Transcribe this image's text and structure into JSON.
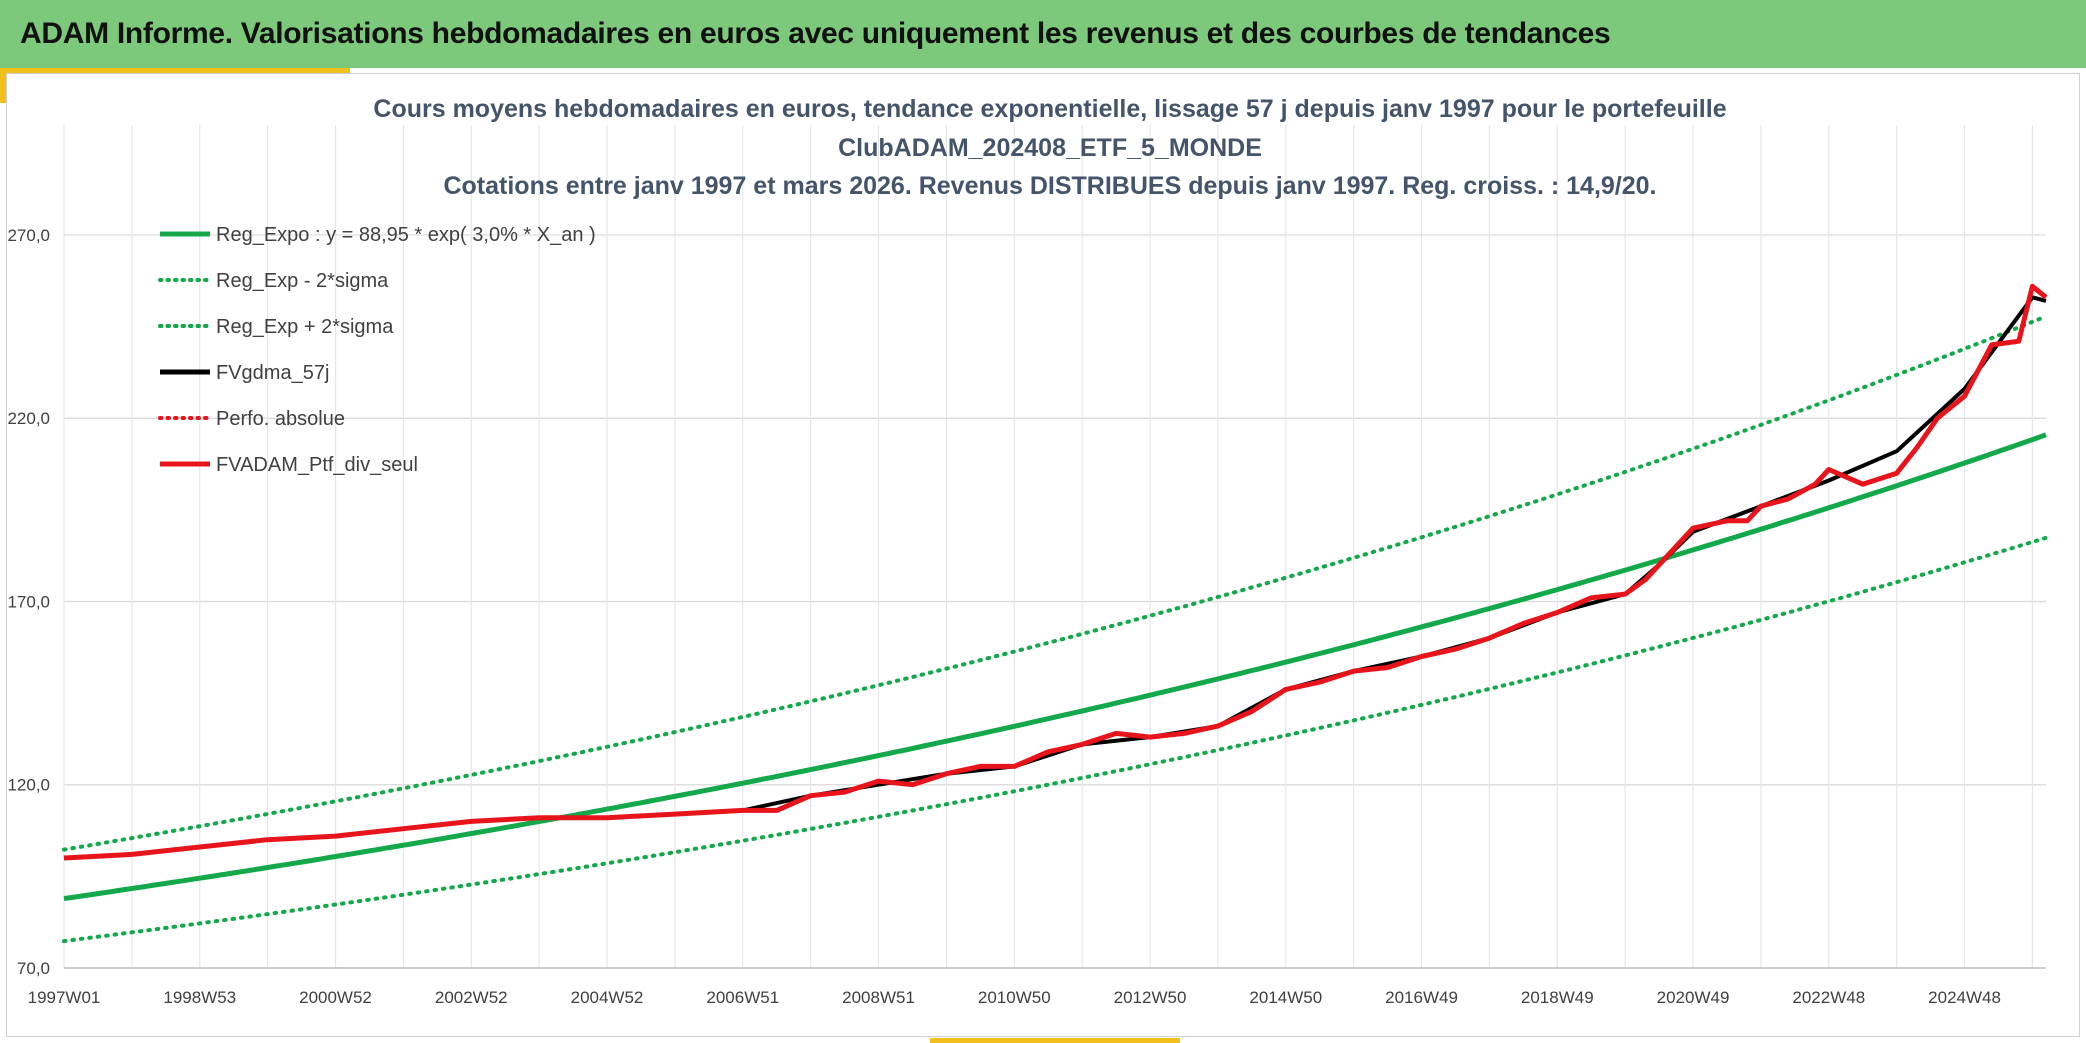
{
  "banner": {
    "title": "ADAM Informe. Valorisations hebdomadaires en euros avec uniquement les revenus et des courbes de tendances"
  },
  "colors": {
    "banner_bg": "#7dc97c",
    "accent": "#f2c01c",
    "trend_green": "#13a94a",
    "smooth_black": "#000000",
    "portfolio_red": "#e8141b"
  },
  "chart_data": {
    "type": "line",
    "title_lines": [
      "Cours moyens hebdomadaires en euros, tendance exponentielle, lissage 57 j depuis janv 1997 pour le portefeuille",
      "ClubADAM_202408_ETF_5_MONDE",
      "Cotations entre janv 1997 et mars 2026. Revenus DISTRIBUES depuis janv 1997. Reg. croiss. : 14,9/20."
    ],
    "x_tick_labels": [
      "1997W01",
      "1998W53",
      "2000W52",
      "2002W52",
      "2004W52",
      "2006W51",
      "2008W51",
      "2010W50",
      "2012W50",
      "2014W50",
      "2016W49",
      "2018W49",
      "2020W49",
      "2022W48",
      "2024W48"
    ],
    "x_range": [
      1997.0,
      2026.2
    ],
    "y_tick_labels": [
      "70,0",
      "120,0",
      "170,0",
      "220,0",
      "270,0"
    ],
    "y_ticks": [
      70,
      120,
      170,
      220,
      270
    ],
    "ylim": [
      70,
      300
    ],
    "grid": true,
    "legend_position": "top-left",
    "legend": [
      {
        "label": "Reg_Expo : y = 88,95 * exp( 3,0% *  X_an )",
        "color": "#13a94a",
        "style": "solid"
      },
      {
        "label": "Reg_Exp - 2*sigma",
        "color": "#13a94a",
        "style": "dotted"
      },
      {
        "label": "Reg_Exp + 2*sigma",
        "color": "#13a94a",
        "style": "dotted"
      },
      {
        "label": "FVgdma_57j",
        "color": "#000000",
        "style": "solid"
      },
      {
        "label": "Perfo. absolue",
        "color": "#e8141b",
        "style": "dotted"
      },
      {
        "label": "FVADAM_Ptf_div_seul",
        "color": "#e8141b",
        "style": "solid"
      }
    ],
    "trend": {
      "coef": 88.95,
      "rate": 0.0303,
      "sigma_factor": 1.15
    },
    "series": [
      {
        "name": "FVADAM_Ptf_div_seul",
        "x": [
          1997.0,
          1998.0,
          1999.0,
          2000.0,
          2001.0,
          2002.0,
          2003.0,
          2004.0,
          2005.0,
          2006.0,
          2007.0,
          2007.5,
          2008.0,
          2008.5,
          2009.0,
          2009.5,
          2010.0,
          2010.5,
          2011.0,
          2011.5,
          2012.0,
          2012.5,
          2013.0,
          2013.5,
          2014.0,
          2014.5,
          2015.0,
          2015.5,
          2016.0,
          2016.5,
          2017.0,
          2017.5,
          2018.0,
          2018.5,
          2019.0,
          2019.5,
          2020.0,
          2020.3,
          2020.6,
          2021.0,
          2021.5,
          2021.8,
          2022.0,
          2022.4,
          2022.8,
          2023.0,
          2023.5,
          2024.0,
          2024.3,
          2024.6,
          2025.0,
          2025.4,
          2025.8,
          2026.0,
          2026.2
        ],
        "y": [
          100,
          101,
          103,
          105,
          106,
          108,
          110,
          111,
          111,
          112,
          113,
          113,
          117,
          118,
          121,
          120,
          123,
          125,
          125,
          129,
          131,
          134,
          133,
          134,
          136,
          140,
          146,
          148,
          151,
          152,
          155,
          157,
          160,
          164,
          167,
          171,
          172,
          176,
          182,
          190,
          192,
          192,
          196,
          198,
          202,
          206,
          202,
          205,
          212,
          220,
          226,
          240,
          241,
          256,
          253
        ]
      },
      {
        "name": "FVgdma_57j",
        "x": [
          1997.0,
          1998.0,
          1999.0,
          2000.0,
          2001.0,
          2002.0,
          2003.0,
          2004.0,
          2005.0,
          2006.0,
          2007.0,
          2008.0,
          2009.0,
          2010.0,
          2011.0,
          2012.0,
          2013.0,
          2014.0,
          2015.0,
          2016.0,
          2017.0,
          2018.0,
          2019.0,
          2020.0,
          2020.5,
          2021.0,
          2022.0,
          2023.0,
          2024.0,
          2025.0,
          2026.0,
          2026.2
        ],
        "y": [
          100,
          101,
          103,
          105,
          106,
          108,
          110,
          111,
          111,
          112,
          113,
          117,
          120,
          123,
          125,
          131,
          133,
          136,
          146,
          151,
          155,
          160,
          167,
          172,
          180,
          189,
          196,
          203,
          211,
          228,
          253,
          252
        ]
      }
    ]
  }
}
